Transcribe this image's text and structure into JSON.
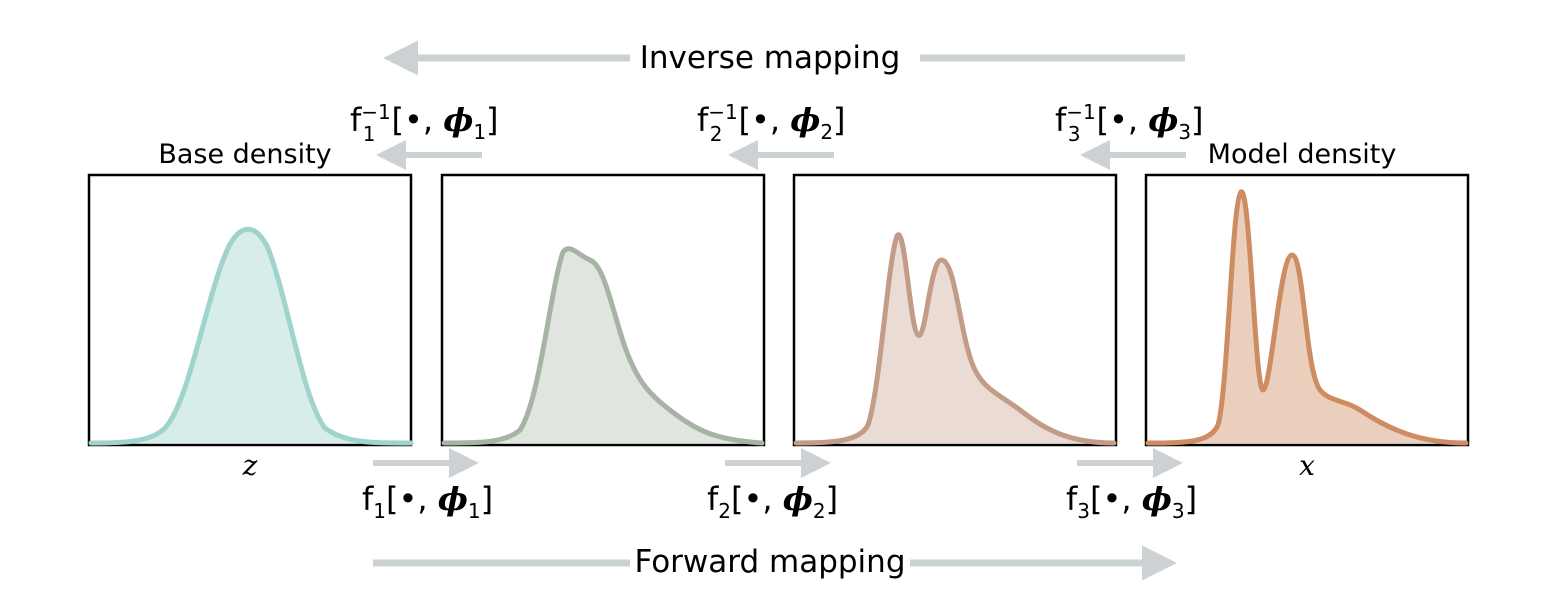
{
  "titles": {
    "inverse": "Inverse mapping",
    "forward": "Forward mapping",
    "base": "Base density",
    "model": "Model density"
  },
  "axis_labels": {
    "base": "z",
    "model": "x"
  },
  "forward_labels": [
    {
      "fn": "f",
      "sub": "1",
      "arg": "[•, ",
      "phi": "ϕ",
      "phi_sub": "1",
      "close": "]"
    },
    {
      "fn": "f",
      "sub": "2",
      "arg": "[•, ",
      "phi": "ϕ",
      "phi_sub": "2",
      "close": "]"
    },
    {
      "fn": "f",
      "sub": "3",
      "arg": "[•, ",
      "phi": "ϕ",
      "phi_sub": "3",
      "close": "]"
    }
  ],
  "inverse_labels": [
    {
      "fn": "f",
      "sub": "1",
      "sup": "−1",
      "arg": "[•, ",
      "phi": "ϕ",
      "phi_sub": "1",
      "close": "]"
    },
    {
      "fn": "f",
      "sub": "2",
      "sup": "−1",
      "arg": "[•, ",
      "phi": "ϕ",
      "phi_sub": "2",
      "close": "]"
    },
    {
      "fn": "f",
      "sub": "3",
      "sup": "−1",
      "arg": "[•, ",
      "phi": "ϕ",
      "phi_sub": "3",
      "close": "]"
    }
  ],
  "colors": {
    "arrow": "#ccd1d3",
    "frame": "#000000",
    "panel1": "#9fd3cc",
    "panel2": "#a6b4a4",
    "panel3": "#c29c86",
    "panel4": "#cd8c62"
  }
}
